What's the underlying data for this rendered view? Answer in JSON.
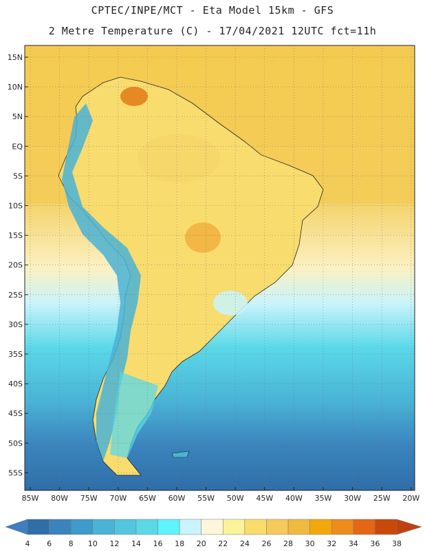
{
  "header": {
    "line1": "CPTEC/INPE/MCT -  Eta Model 15km - GFS",
    "line2": "2 Metre Temperature (C) - 17/04/2021 12UTC fct=11h"
  },
  "map": {
    "lat_labels": [
      "15N",
      "10N",
      "5N",
      "EQ",
      "5S",
      "10S",
      "15S",
      "20S",
      "25S",
      "30S",
      "35S",
      "40S",
      "45S",
      "50S",
      "55S"
    ],
    "lon_labels": [
      "85W",
      "80W",
      "75W",
      "70W",
      "65W",
      "60W",
      "55W",
      "50W",
      "45W",
      "40W",
      "35W",
      "30W",
      "25W",
      "20W"
    ],
    "ocean_color": "#f3c94d",
    "land_color": "#f8dc6e"
  },
  "colorbar": {
    "labels": [
      "4",
      "6",
      "8",
      "10",
      "12",
      "14",
      "16",
      "18",
      "20",
      "22",
      "24",
      "26",
      "28",
      "30",
      "32",
      "34",
      "36",
      "38"
    ],
    "colors": [
      "#2f6ea8",
      "#3a84bd",
      "#3f9bc9",
      "#4ab3d6",
      "#52c6de",
      "#5ad8e8",
      "#5ff2ff",
      "#c9f4fb",
      "#fdf6d8",
      "#fbf39a",
      "#fadc6a",
      "#f5c95a",
      "#efba3e",
      "#f2a80c",
      "#ef8c1e",
      "#e56614",
      "#c84a0a"
    ],
    "low_arrow": "#3d7fbf",
    "high_arrow": "#c0420f"
  }
}
